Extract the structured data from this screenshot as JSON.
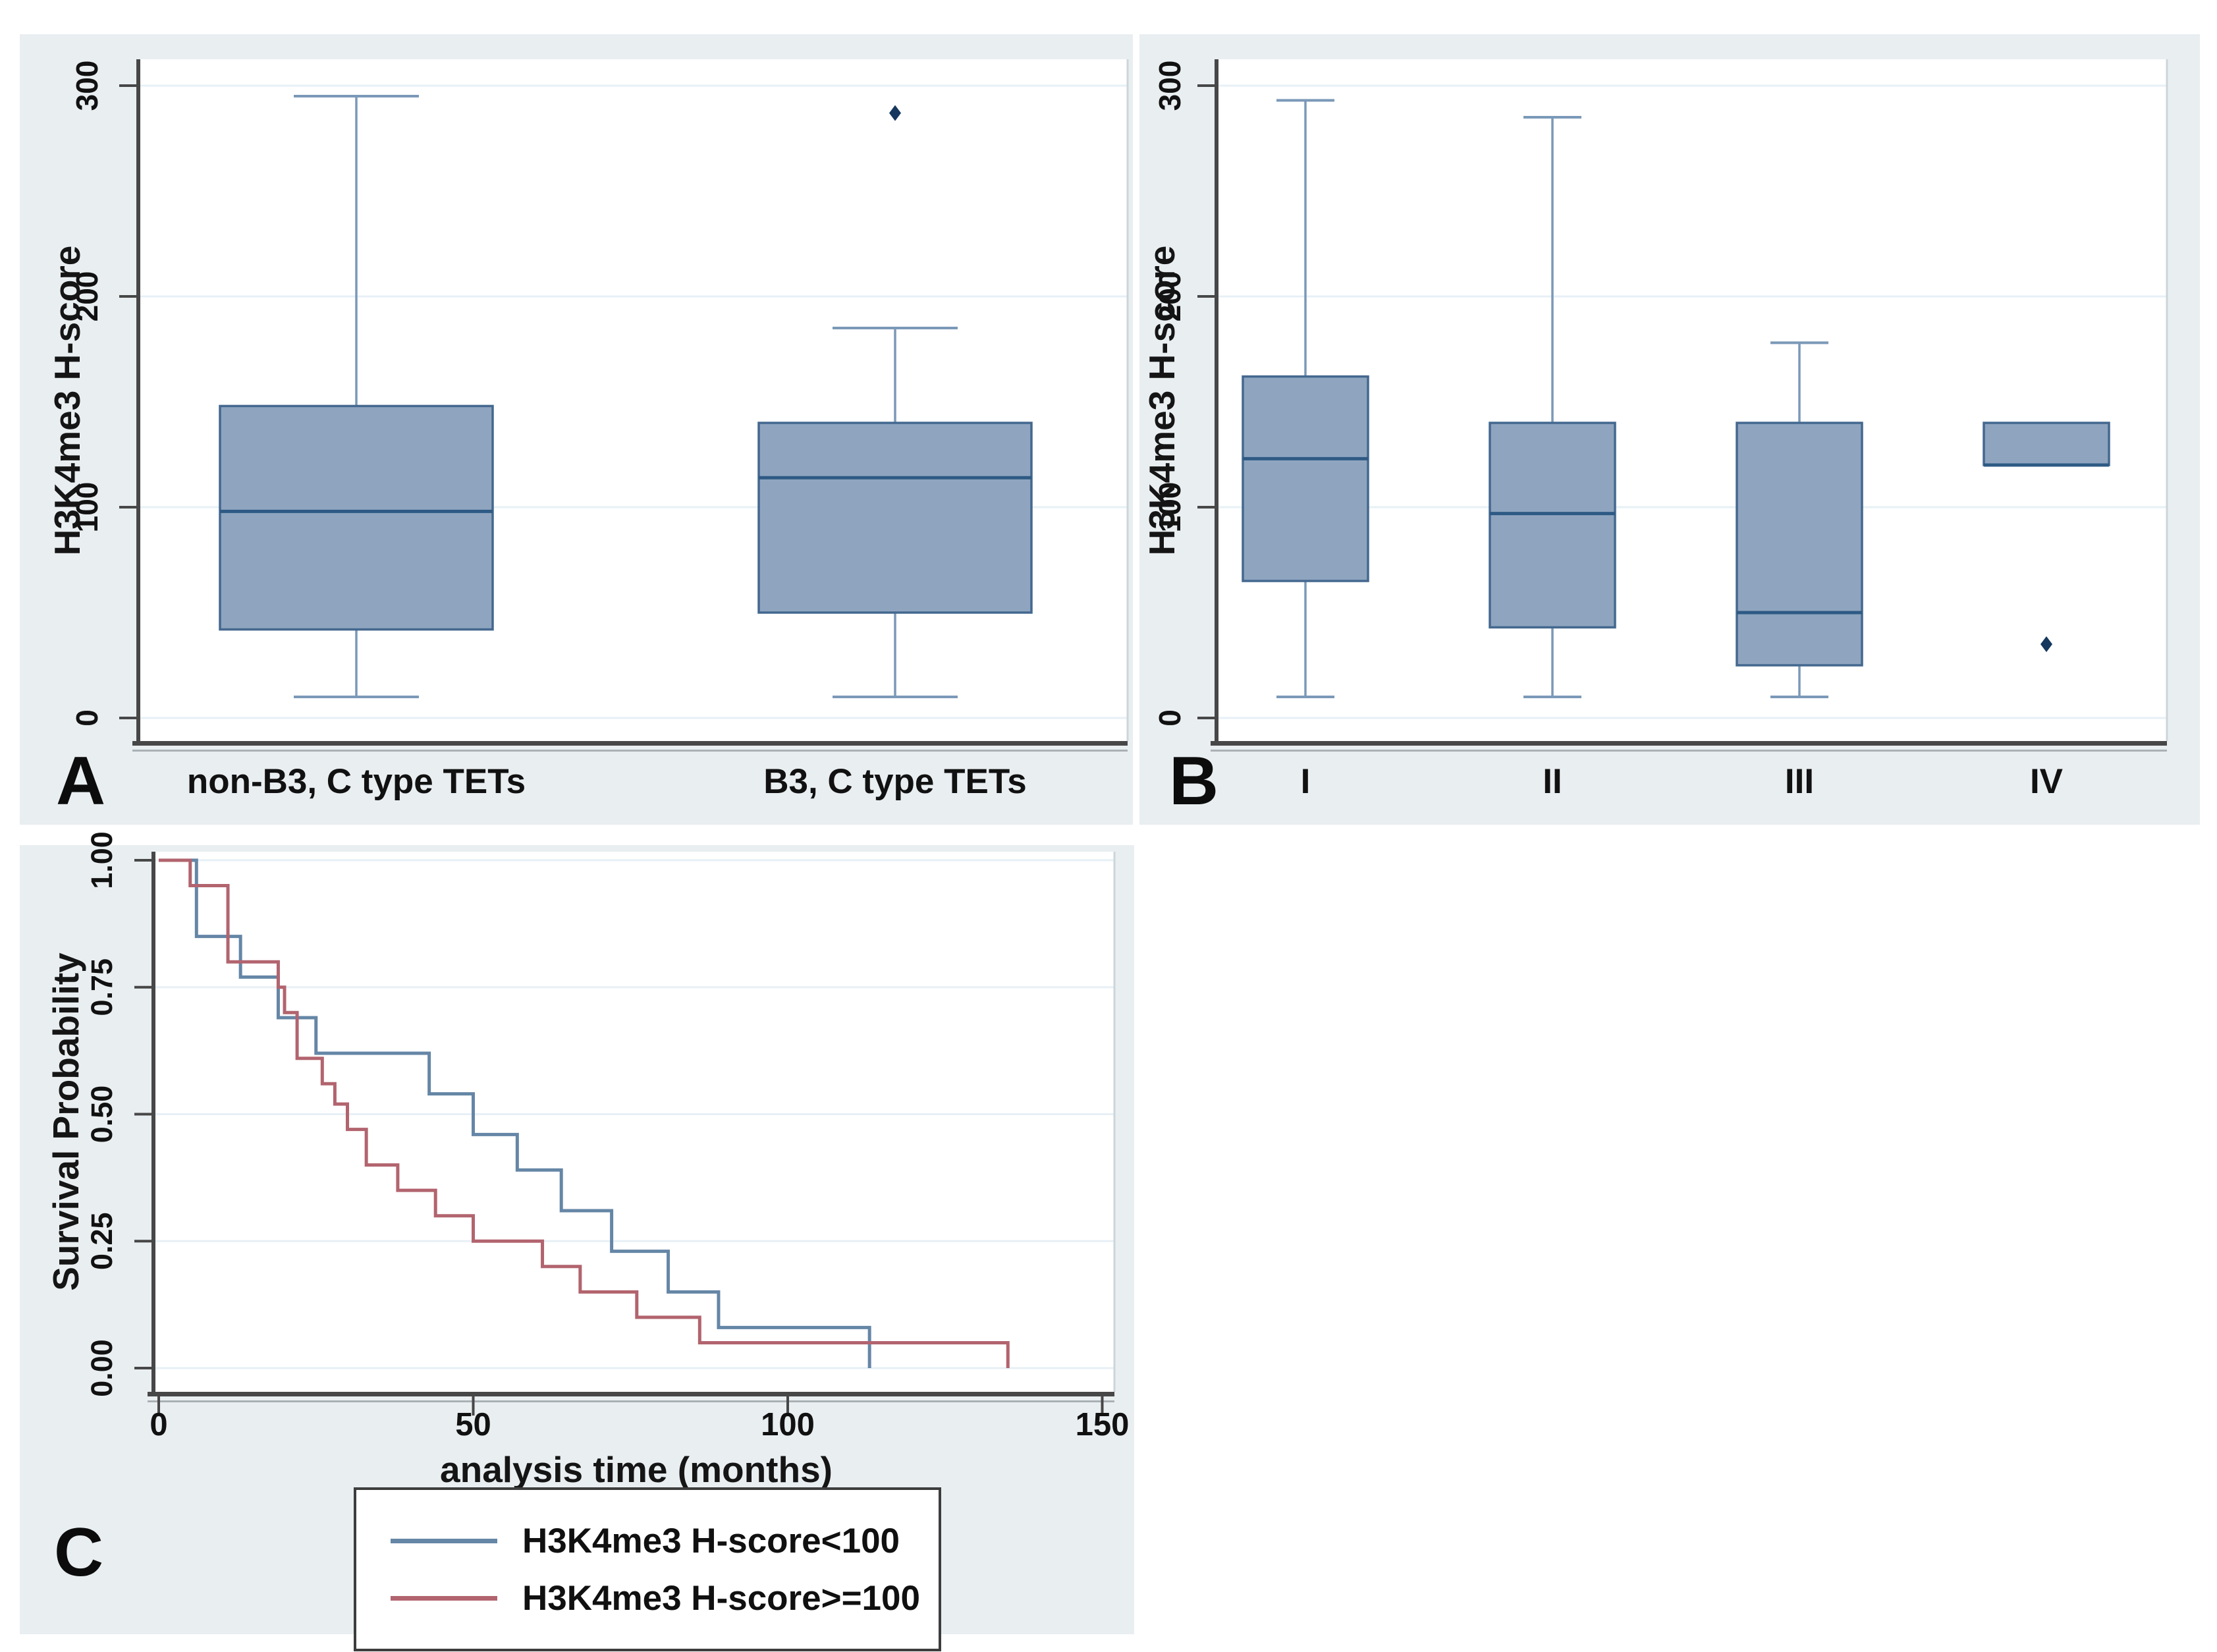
{
  "colors": {
    "page_bg": "#ffffff",
    "panel_bg": "#e9eef1",
    "plot_bg": "#ffffff",
    "grid": "#e7f0f6",
    "axis": "#474747",
    "axis_shadow": "#aab1b5",
    "plot_right_border": "#ccd5d9",
    "box_fill": "#8fa5bf",
    "box_border": "#44688f",
    "median": "#2e5a84",
    "whisker": "#7b99b8",
    "outlier": "#16375e",
    "km_blue": "#6586a6",
    "km_red": "#b2646e",
    "text": "#111111"
  },
  "chart_data": [
    {
      "id": "panel_a",
      "type": "box",
      "title_letter": "A",
      "ylabel": "H3K4me3 H-score",
      "yticks": [
        0,
        100,
        200,
        300
      ],
      "ytick_labels": [
        "0",
        "100",
        "200",
        "300"
      ],
      "ylim": [
        -11,
        312
      ],
      "grid": true,
      "categories": [
        "non-B3, C type TETs",
        "B3, C type TETs"
      ],
      "boxes": [
        {
          "category": "non-B3, C type TETs",
          "min": 10,
          "q1": 42,
          "median": 98,
          "q3": 148,
          "max": 295,
          "outliers": []
        },
        {
          "category": "B3, C type TETs",
          "min": 10,
          "q1": 50,
          "median": 114,
          "q3": 140,
          "max": 185,
          "outliers": [
            287
          ]
        }
      ]
    },
    {
      "id": "panel_b",
      "type": "box",
      "title_letter": "B",
      "ylabel": "H3K4me3 H-score",
      "yticks": [
        0,
        100,
        200,
        300
      ],
      "ytick_labels": [
        "0",
        "100",
        "200",
        "300"
      ],
      "ylim": [
        -11,
        312
      ],
      "grid": true,
      "categories": [
        "I",
        "II",
        "III",
        "IV"
      ],
      "boxes": [
        {
          "category": "I",
          "min": 10,
          "q1": 65,
          "median": 123,
          "q3": 162,
          "max": 293,
          "outliers": []
        },
        {
          "category": "II",
          "min": 10,
          "q1": 43,
          "median": 97,
          "q3": 140,
          "max": 285,
          "outliers": []
        },
        {
          "category": "III",
          "min": 10,
          "q1": 25,
          "median": 50,
          "q3": 140,
          "max": 178,
          "outliers": []
        },
        {
          "category": "IV",
          "min": null,
          "q1": 120,
          "median": 120,
          "q3": 140,
          "max": null,
          "outliers": [
            35
          ]
        }
      ]
    },
    {
      "id": "panel_c",
      "type": "line",
      "title_letter": "C",
      "xlabel": "analysis time (months)",
      "ylabel": "Survival Probability",
      "xticks": [
        0,
        50,
        100,
        150
      ],
      "xtick_labels": [
        "0",
        "50",
        "100",
        "150"
      ],
      "yticks": [
        0,
        0.25,
        0.5,
        0.75,
        1.0
      ],
      "ytick_labels": [
        "0.00",
        "0.25",
        "0.50",
        "0.75",
        "1.00"
      ],
      "xlim": [
        0,
        152
      ],
      "ylim": [
        0,
        1.04
      ],
      "grid": true,
      "legend_position": "below",
      "series": [
        {
          "name": "H3K4me3 H-score<100",
          "color_key": "km_blue",
          "steps": [
            [
              0,
              1.0
            ],
            [
              6,
              0.85
            ],
            [
              13,
              0.77
            ],
            [
              19,
              0.69
            ],
            [
              25,
              0.62
            ],
            [
              43,
              0.54
            ],
            [
              50,
              0.46
            ],
            [
              57,
              0.39
            ],
            [
              64,
              0.31
            ],
            [
              72,
              0.23
            ],
            [
              81,
              0.15
            ],
            [
              89,
              0.08
            ],
            [
              113,
              0.0
            ]
          ]
        },
        {
          "name": "H3K4me3 H-score>=100",
          "color_key": "km_red",
          "steps": [
            [
              0,
              1.0
            ],
            [
              5,
              0.95
            ],
            [
              11,
              0.8
            ],
            [
              19,
              0.75
            ],
            [
              20,
              0.7
            ],
            [
              22,
              0.61
            ],
            [
              26,
              0.56
            ],
            [
              28,
              0.52
            ],
            [
              30,
              0.47
            ],
            [
              33,
              0.4
            ],
            [
              38,
              0.35
            ],
            [
              44,
              0.3
            ],
            [
              50,
              0.25
            ],
            [
              61,
              0.2
            ],
            [
              67,
              0.15
            ],
            [
              76,
              0.1
            ],
            [
              86,
              0.05
            ],
            [
              135,
              0.0
            ]
          ]
        }
      ]
    }
  ]
}
